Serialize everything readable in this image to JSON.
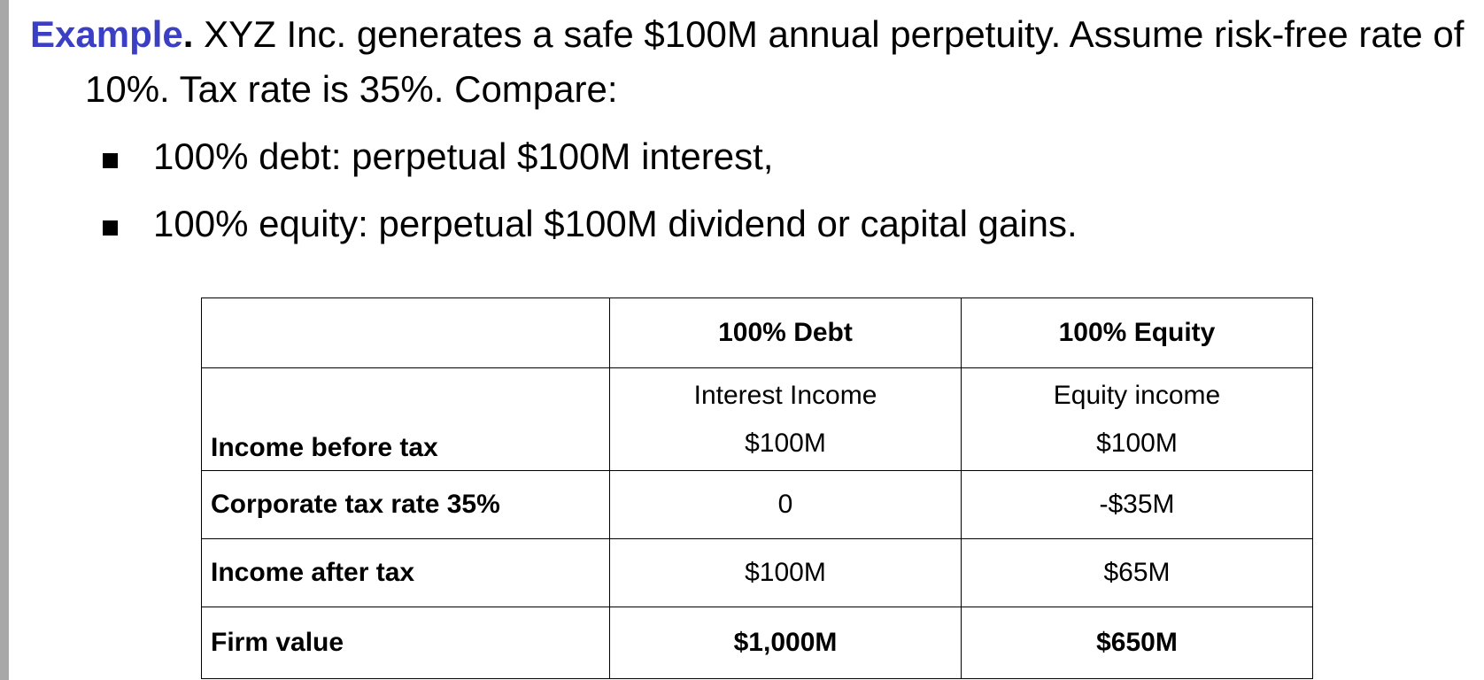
{
  "intro": {
    "lead": "Example",
    "lead_dot": ".",
    "text": " XYZ Inc. generates a safe $100M annual perpetuity.  Assume risk-free rate of 10%.  Tax rate is 35%.  Compare:"
  },
  "bullets": [
    "100% debt: perpetual $100M interest,",
    "100% equity: perpetual $100M dividend or capital gains."
  ],
  "table": {
    "headers": [
      "",
      "100% Debt",
      "100% Equity"
    ],
    "rows": [
      {
        "label": "Income before tax",
        "debt_sub": "Interest Income",
        "debt": "$100M",
        "equity_sub": "Equity income",
        "equity": "$100M"
      },
      {
        "label": "Corporate tax rate 35%",
        "debt": "0",
        "equity": "-$35M"
      },
      {
        "label": "Income after tax",
        "debt": "$100M",
        "equity": "$65M"
      },
      {
        "label": "Firm value",
        "debt": "$1,000M",
        "equity": "$650M"
      }
    ]
  },
  "colors": {
    "lead": "#3a3fc4",
    "left_bar": "#a8a8a8"
  }
}
